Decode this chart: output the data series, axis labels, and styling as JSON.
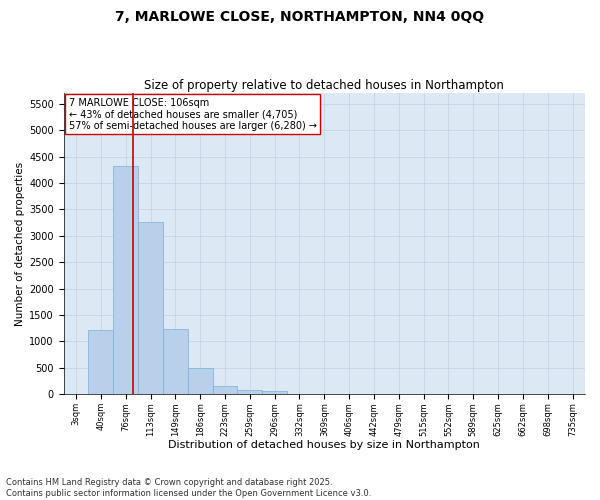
{
  "title": "7, MARLOWE CLOSE, NORTHAMPTON, NN4 0QQ",
  "subtitle": "Size of property relative to detached houses in Northampton",
  "xlabel": "Distribution of detached houses by size in Northampton",
  "ylabel": "Number of detached properties",
  "categories": [
    "3sqm",
    "40sqm",
    "76sqm",
    "113sqm",
    "149sqm",
    "186sqm",
    "223sqm",
    "259sqm",
    "296sqm",
    "332sqm",
    "369sqm",
    "406sqm",
    "442sqm",
    "479sqm",
    "515sqm",
    "552sqm",
    "589sqm",
    "625sqm",
    "662sqm",
    "698sqm",
    "735sqm"
  ],
  "values": [
    0,
    1220,
    4320,
    3270,
    1230,
    490,
    160,
    80,
    60,
    0,
    0,
    0,
    0,
    0,
    0,
    0,
    0,
    0,
    0,
    0,
    0
  ],
  "bar_color": "#b8d0ea",
  "bar_edge_color": "#7aafd4",
  "vline_color": "#cc0000",
  "annotation_line1": "7 MARLOWE CLOSE: 106sqm",
  "annotation_line2": "← 43% of detached houses are smaller (4,705)",
  "annotation_line3": "57% of semi-detached houses are larger (6,280) →",
  "annotation_box_facecolor": "#ffffff",
  "annotation_box_edgecolor": "#cc0000",
  "ylim": [
    0,
    5700
  ],
  "yticks": [
    0,
    500,
    1000,
    1500,
    2000,
    2500,
    3000,
    3500,
    4000,
    4500,
    5000,
    5500
  ],
  "grid_color": "#c8d4e4",
  "background_color": "#dce8f4",
  "footer_line1": "Contains HM Land Registry data © Crown copyright and database right 2025.",
  "footer_line2": "Contains public sector information licensed under the Open Government Licence v3.0.",
  "title_fontsize": 10,
  "subtitle_fontsize": 8.5,
  "xlabel_fontsize": 8,
  "ylabel_fontsize": 7.5,
  "xtick_fontsize": 6,
  "ytick_fontsize": 7,
  "annotation_fontsize": 7,
  "footer_fontsize": 6
}
